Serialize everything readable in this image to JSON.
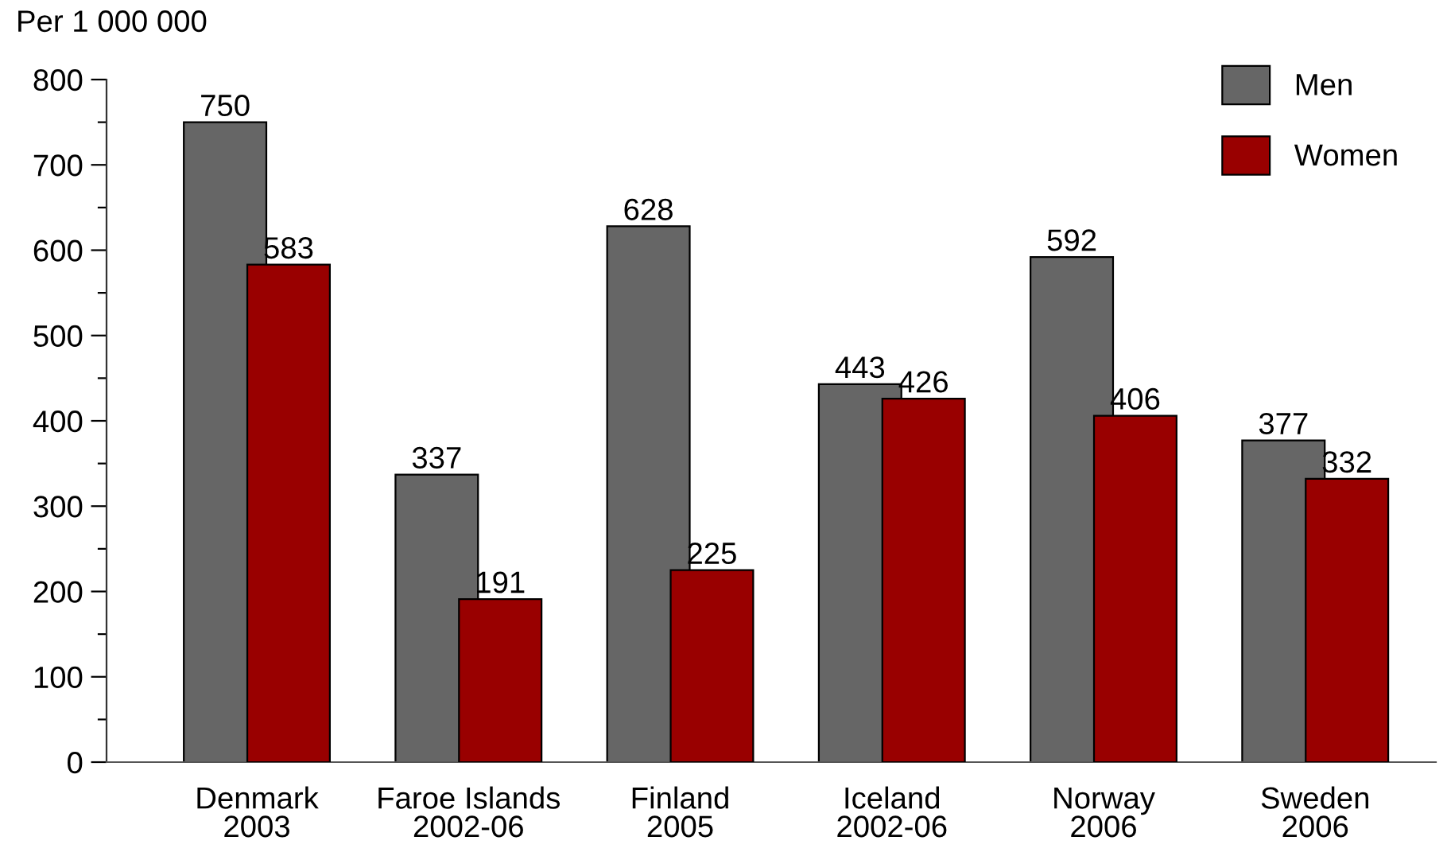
{
  "chart_data": {
    "type": "bar",
    "ylabel": "Per 1 000 000",
    "categories": [
      "Denmark\n2003",
      "Faroe Islands\n2002-06",
      "Finland\n2005",
      "Iceland\n2002-06",
      "Norway\n2006",
      "Sweden\n2006"
    ],
    "series": [
      {
        "name": "Men",
        "color": "#666666",
        "values": [
          750,
          337,
          628,
          443,
          592,
          377
        ]
      },
      {
        "name": "Women",
        "color": "#990000",
        "values": [
          583,
          191,
          225,
          426,
          406,
          332
        ]
      }
    ],
    "ylim": [
      0,
      800
    ],
    "yticks": [
      0,
      {
        "value": 50,
        "label": null
      },
      100,
      {
        "value": 150,
        "label": null
      },
      200,
      {
        "value": 250,
        "label": null
      },
      300,
      {
        "value": 350,
        "label": null
      },
      400,
      {
        "value": 450,
        "label": null
      },
      500,
      {
        "value": 550,
        "label": null
      },
      600,
      {
        "value": 650,
        "label": null
      },
      700,
      {
        "value": 750,
        "label": null
      },
      800
    ],
    "data_labels": true,
    "legend": "top right",
    "grid": false
  }
}
